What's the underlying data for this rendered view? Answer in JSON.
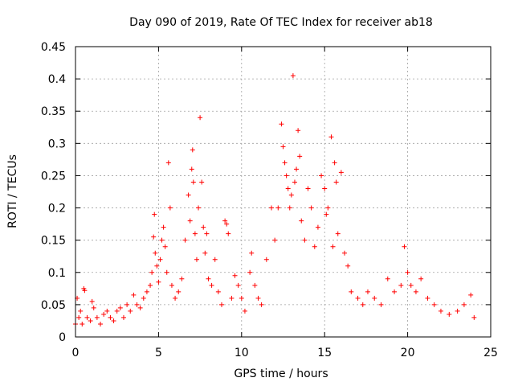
{
  "chart_data": {
    "type": "scatter",
    "title": "Day 090 of 2019, Rate Of TEC Index for receiver ab18",
    "xlabel": "GPS time / hours",
    "ylabel": "ROTI / TECUs",
    "xlim": [
      0,
      25
    ],
    "ylim": [
      0,
      0.45
    ],
    "xticks": [
      0,
      5,
      10,
      15,
      20,
      25
    ],
    "xtick_labels": [
      "0",
      "5",
      "10",
      "15",
      "20",
      "25"
    ],
    "yticks": [
      0,
      0.05,
      0.1,
      0.15,
      0.2,
      0.25,
      0.3,
      0.35,
      0.4,
      0.45
    ],
    "ytick_labels": [
      "0",
      "0.05",
      "0.1",
      "0.15",
      "0.2",
      "0.25",
      "0.3",
      "0.35",
      "0.4",
      "0.45"
    ],
    "grid": true,
    "marker": "+",
    "color": "#ff0000",
    "series": [
      {
        "points": [
          [
            0.0,
            0.02
          ],
          [
            0.1,
            0.06
          ],
          [
            0.2,
            0.03
          ],
          [
            0.3,
            0.04
          ],
          [
            0.4,
            0.02
          ],
          [
            0.5,
            0.075
          ],
          [
            0.55,
            0.072
          ],
          [
            0.7,
            0.03
          ],
          [
            0.9,
            0.025
          ],
          [
            1.0,
            0.055
          ],
          [
            1.1,
            0.045
          ],
          [
            1.3,
            0.03
          ],
          [
            1.5,
            0.02
          ],
          [
            1.7,
            0.035
          ],
          [
            1.9,
            0.04
          ],
          [
            2.1,
            0.03
          ],
          [
            2.3,
            0.025
          ],
          [
            2.5,
            0.04
          ],
          [
            2.7,
            0.045
          ],
          [
            2.9,
            0.03
          ],
          [
            3.1,
            0.05
          ],
          [
            3.3,
            0.04
          ],
          [
            3.5,
            0.065
          ],
          [
            3.7,
            0.05
          ],
          [
            3.9,
            0.045
          ],
          [
            4.1,
            0.06
          ],
          [
            4.3,
            0.07
          ],
          [
            4.5,
            0.08
          ],
          [
            4.6,
            0.1
          ],
          [
            4.7,
            0.155
          ],
          [
            4.75,
            0.19
          ],
          [
            4.8,
            0.13
          ],
          [
            4.9,
            0.11
          ],
          [
            5.0,
            0.085
          ],
          [
            5.1,
            0.12
          ],
          [
            5.2,
            0.15
          ],
          [
            5.3,
            0.17
          ],
          [
            5.4,
            0.14
          ],
          [
            5.5,
            0.1
          ],
          [
            5.6,
            0.27
          ],
          [
            5.7,
            0.2
          ],
          [
            5.8,
            0.08
          ],
          [
            6.0,
            0.06
          ],
          [
            6.2,
            0.07
          ],
          [
            6.4,
            0.09
          ],
          [
            6.6,
            0.15
          ],
          [
            6.8,
            0.22
          ],
          [
            6.9,
            0.18
          ],
          [
            7.0,
            0.26
          ],
          [
            7.05,
            0.29
          ],
          [
            7.1,
            0.24
          ],
          [
            7.2,
            0.16
          ],
          [
            7.3,
            0.12
          ],
          [
            7.4,
            0.2
          ],
          [
            7.5,
            0.34
          ],
          [
            7.6,
            0.24
          ],
          [
            7.7,
            0.17
          ],
          [
            7.8,
            0.13
          ],
          [
            7.9,
            0.16
          ],
          [
            8.0,
            0.09
          ],
          [
            8.2,
            0.08
          ],
          [
            8.4,
            0.12
          ],
          [
            8.6,
            0.07
          ],
          [
            8.8,
            0.05
          ],
          [
            9.0,
            0.18
          ],
          [
            9.1,
            0.175
          ],
          [
            9.2,
            0.16
          ],
          [
            9.4,
            0.06
          ],
          [
            9.6,
            0.095
          ],
          [
            9.8,
            0.08
          ],
          [
            10.0,
            0.06
          ],
          [
            10.2,
            0.04
          ],
          [
            10.5,
            0.1
          ],
          [
            10.6,
            0.13
          ],
          [
            10.8,
            0.08
          ],
          [
            11.0,
            0.06
          ],
          [
            11.2,
            0.05
          ],
          [
            11.5,
            0.12
          ],
          [
            11.8,
            0.2
          ],
          [
            12.0,
            0.15
          ],
          [
            12.2,
            0.2
          ],
          [
            12.4,
            0.33
          ],
          [
            12.5,
            0.295
          ],
          [
            12.6,
            0.27
          ],
          [
            12.7,
            0.25
          ],
          [
            12.8,
            0.23
          ],
          [
            12.9,
            0.2
          ],
          [
            13.0,
            0.22
          ],
          [
            13.1,
            0.405
          ],
          [
            13.2,
            0.24
          ],
          [
            13.3,
            0.26
          ],
          [
            13.4,
            0.32
          ],
          [
            13.5,
            0.28
          ],
          [
            13.6,
            0.18
          ],
          [
            13.8,
            0.15
          ],
          [
            14.0,
            0.23
          ],
          [
            14.2,
            0.2
          ],
          [
            14.4,
            0.14
          ],
          [
            14.6,
            0.17
          ],
          [
            14.8,
            0.25
          ],
          [
            15.0,
            0.23
          ],
          [
            15.1,
            0.19
          ],
          [
            15.2,
            0.2
          ],
          [
            15.4,
            0.31
          ],
          [
            15.5,
            0.14
          ],
          [
            15.6,
            0.27
          ],
          [
            15.7,
            0.24
          ],
          [
            15.8,
            0.16
          ],
          [
            16.0,
            0.255
          ],
          [
            16.2,
            0.13
          ],
          [
            16.4,
            0.11
          ],
          [
            16.6,
            0.07
          ],
          [
            17.0,
            0.06
          ],
          [
            17.3,
            0.05
          ],
          [
            17.6,
            0.07
          ],
          [
            18.0,
            0.06
          ],
          [
            18.4,
            0.05
          ],
          [
            18.8,
            0.09
          ],
          [
            19.2,
            0.07
          ],
          [
            19.6,
            0.08
          ],
          [
            19.8,
            0.14
          ],
          [
            20.0,
            0.1
          ],
          [
            20.2,
            0.08
          ],
          [
            20.5,
            0.07
          ],
          [
            20.8,
            0.09
          ],
          [
            21.2,
            0.06
          ],
          [
            21.6,
            0.05
          ],
          [
            22.0,
            0.04
          ],
          [
            22.5,
            0.035
          ],
          [
            23.0,
            0.04
          ],
          [
            23.4,
            0.05
          ],
          [
            23.8,
            0.065
          ],
          [
            24.0,
            0.03
          ]
        ]
      }
    ]
  }
}
